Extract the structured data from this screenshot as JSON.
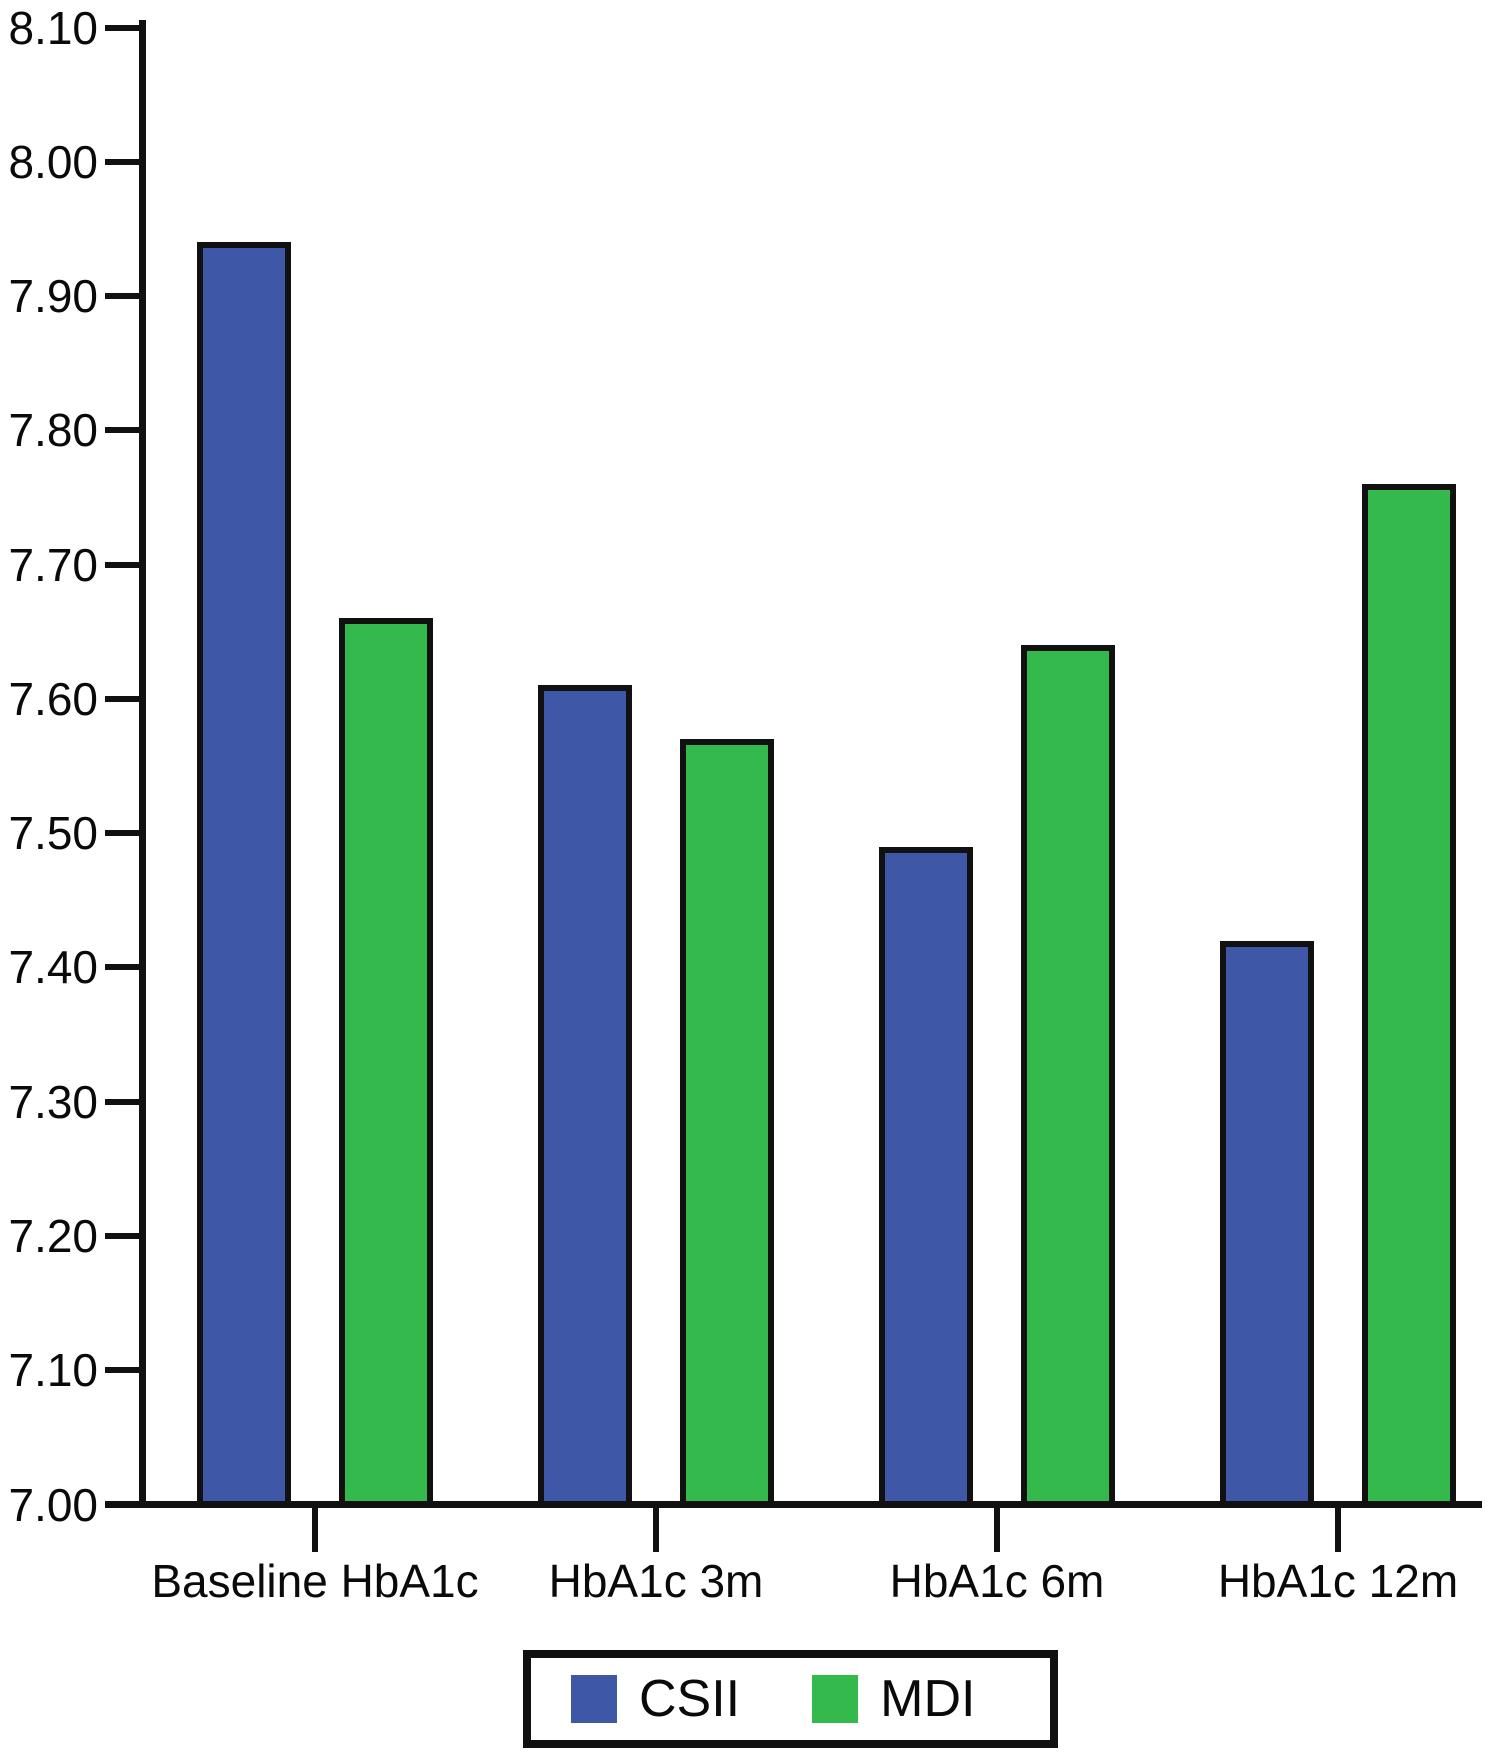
{
  "figure": {
    "background_color": "#ffffff",
    "axis_color": "#111111",
    "bar_border_color": "#111111"
  },
  "chart_data": {
    "type": "bar",
    "title": "",
    "xlabel": "",
    "ylabel": "",
    "categories": [
      "Baseline HbA1c",
      "HbA1c 3m",
      "HbA1c 6m",
      "HbA1c 12m"
    ],
    "series": [
      {
        "name": "CSII",
        "color": "#3F57A7",
        "values": [
          7.94,
          7.61,
          7.49,
          7.42
        ]
      },
      {
        "name": "MDI",
        "color": "#33B94C",
        "values": [
          7.66,
          7.57,
          7.64,
          7.76
        ]
      }
    ],
    "ylim": [
      7.0,
      8.1
    ],
    "y_tick_step": 0.1,
    "y_tick_labels": [
      "7.00",
      "7.10",
      "7.20",
      "7.30",
      "7.40",
      "7.50",
      "7.60",
      "7.70",
      "7.80",
      "7.90",
      "8.00",
      "8.10"
    ],
    "grid": false,
    "legend_position": "bottom"
  }
}
